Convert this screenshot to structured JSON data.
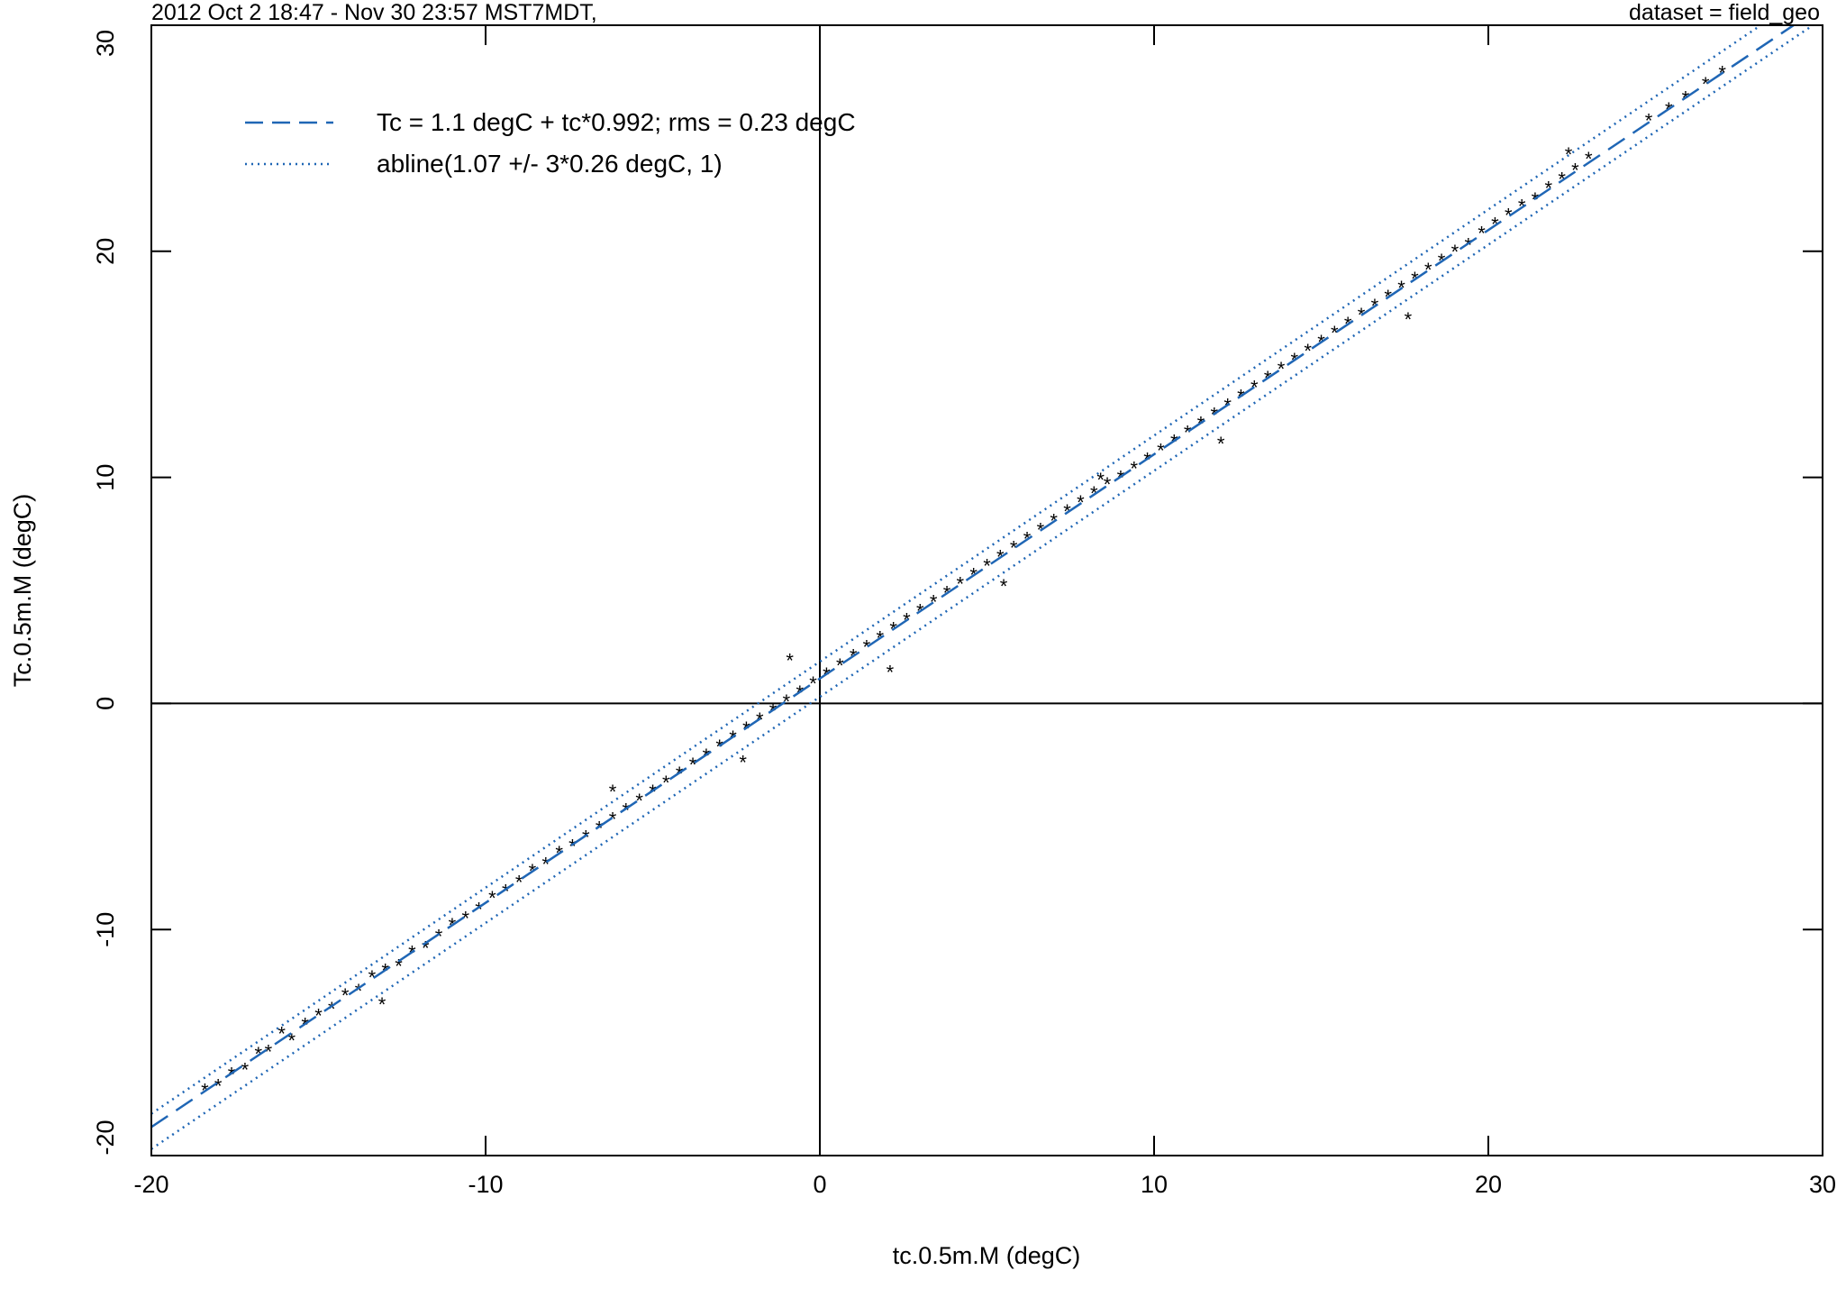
{
  "chart_data": {
    "type": "scatter",
    "header_left": "2012 Oct 2 18:47 - Nov 30 23:57  MST7MDT,",
    "header_right": "dataset = field_geo",
    "xlabel": "tc.0.5m.M (degC)",
    "ylabel": "Tc.0.5m.M (degC)",
    "xlim": [
      -20,
      30
    ],
    "ylim": [
      -20,
      30
    ],
    "xticks": [
      "-20",
      "-10",
      "0",
      "10",
      "20",
      "30"
    ],
    "yticks": [
      "-20",
      "-10",
      "0",
      "10",
      "20",
      "30"
    ],
    "grid": false,
    "reference_lines": {
      "x": 0,
      "y": 0
    },
    "legend": {
      "placement": "top-left",
      "entries": [
        {
          "label": "Tc = 1.1 degC + tc*0.992; rms = 0.23 degC",
          "style": "dashed",
          "color": "#1f66b5"
        },
        {
          "label": "abline(1.07 +/- 3*0.26 degC, 1)",
          "style": "dotted",
          "color": "#1f66b5"
        }
      ]
    },
    "fit_line": {
      "intercept": 1.1,
      "slope": 0.992,
      "color": "#1f66b5"
    },
    "bound_lines": [
      {
        "intercept": 1.85,
        "slope": 1,
        "color": "#1f66b5"
      },
      {
        "intercept": 0.29,
        "slope": 1,
        "color": "#1f66b5"
      }
    ],
    "series": [
      {
        "marker": "*",
        "color": "#000000",
        "points": [
          [
            -18.4,
            -17.1
          ],
          [
            -18.0,
            -16.9
          ],
          [
            -17.6,
            -16.4
          ],
          [
            -17.2,
            -16.2
          ],
          [
            -16.8,
            -15.5
          ],
          [
            -16.5,
            -15.4
          ],
          [
            -16.1,
            -14.6
          ],
          [
            -15.8,
            -14.9
          ],
          [
            -15.4,
            -14.2
          ],
          [
            -15.0,
            -13.8
          ],
          [
            -14.6,
            -13.5
          ],
          [
            -14.2,
            -12.9
          ],
          [
            -13.8,
            -12.7
          ],
          [
            -13.4,
            -12.1
          ],
          [
            -13.0,
            -11.8
          ],
          [
            -12.6,
            -11.6
          ],
          [
            -12.2,
            -11.0
          ],
          [
            -11.8,
            -10.8
          ],
          [
            -11.4,
            -10.3
          ],
          [
            -11.0,
            -9.8
          ],
          [
            -10.6,
            -9.5
          ],
          [
            -10.2,
            -9.1
          ],
          [
            -9.8,
            -8.6
          ],
          [
            -9.4,
            -8.3
          ],
          [
            -9.0,
            -7.9
          ],
          [
            -8.6,
            -7.4
          ],
          [
            -8.2,
            -7.1
          ],
          [
            -7.8,
            -6.6
          ],
          [
            -7.4,
            -6.3
          ],
          [
            -7.0,
            -5.9
          ],
          [
            -6.6,
            -5.5
          ],
          [
            -6.2,
            -5.1
          ],
          [
            -5.8,
            -4.7
          ],
          [
            -5.4,
            -4.3
          ],
          [
            -5.0,
            -3.9
          ],
          [
            -4.6,
            -3.5
          ],
          [
            -4.2,
            -3.1
          ],
          [
            -3.8,
            -2.7
          ],
          [
            -3.4,
            -2.3
          ],
          [
            -3.0,
            -1.9
          ],
          [
            -2.6,
            -1.5
          ],
          [
            -2.2,
            -1.1
          ],
          [
            -1.8,
            -0.7
          ],
          [
            -1.4,
            -0.3
          ],
          [
            -1.0,
            0.1
          ],
          [
            -0.6,
            0.5
          ],
          [
            -0.2,
            0.9
          ],
          [
            0.2,
            1.3
          ],
          [
            0.6,
            1.7
          ],
          [
            1.0,
            2.1
          ],
          [
            1.4,
            2.5
          ],
          [
            1.8,
            2.9
          ],
          [
            2.2,
            3.3
          ],
          [
            2.6,
            3.7
          ],
          [
            3.0,
            4.1
          ],
          [
            3.4,
            4.5
          ],
          [
            3.8,
            4.9
          ],
          [
            4.2,
            5.3
          ],
          [
            4.6,
            5.7
          ],
          [
            5.0,
            6.1
          ],
          [
            5.4,
            6.5
          ],
          [
            5.8,
            6.9
          ],
          [
            6.2,
            7.3
          ],
          [
            6.6,
            7.7
          ],
          [
            7.0,
            8.1
          ],
          [
            7.4,
            8.5
          ],
          [
            7.8,
            8.9
          ],
          [
            8.2,
            9.3
          ],
          [
            8.6,
            9.7
          ],
          [
            9.0,
            10.0
          ],
          [
            9.4,
            10.4
          ],
          [
            9.8,
            10.8
          ],
          [
            10.2,
            11.2
          ],
          [
            10.6,
            11.6
          ],
          [
            11.0,
            12.0
          ],
          [
            11.4,
            12.4
          ],
          [
            11.8,
            12.8
          ],
          [
            12.2,
            13.2
          ],
          [
            12.6,
            13.6
          ],
          [
            13.0,
            14.0
          ],
          [
            13.4,
            14.4
          ],
          [
            13.8,
            14.8
          ],
          [
            14.2,
            15.2
          ],
          [
            14.6,
            15.6
          ],
          [
            15.0,
            16.0
          ],
          [
            15.4,
            16.4
          ],
          [
            15.8,
            16.8
          ],
          [
            16.2,
            17.2
          ],
          [
            16.6,
            17.6
          ],
          [
            17.0,
            18.0
          ],
          [
            17.4,
            18.4
          ],
          [
            17.8,
            18.8
          ],
          [
            18.2,
            19.2
          ],
          [
            18.6,
            19.6
          ],
          [
            19.0,
            20.0
          ],
          [
            19.4,
            20.3
          ],
          [
            19.8,
            20.8
          ],
          [
            20.2,
            21.2
          ],
          [
            20.6,
            21.6
          ],
          [
            21.0,
            22.0
          ],
          [
            21.4,
            22.3
          ],
          [
            21.8,
            22.8
          ],
          [
            22.2,
            23.2
          ],
          [
            22.6,
            23.6
          ],
          [
            23.0,
            24.1
          ],
          [
            24.8,
            25.8
          ],
          [
            25.4,
            26.3
          ],
          [
            25.9,
            26.8
          ],
          [
            26.5,
            27.4
          ],
          [
            27.0,
            27.9
          ],
          [
            2.1,
            1.4
          ],
          [
            5.5,
            5.2
          ],
          [
            17.6,
            17.0
          ],
          [
            22.4,
            24.3
          ],
          [
            -6.2,
            -3.9
          ],
          [
            -0.9,
            1.9
          ],
          [
            -2.3,
            -2.6
          ],
          [
            12.0,
            11.5
          ],
          [
            8.4,
            9.9
          ],
          [
            -13.1,
            -13.3
          ]
        ]
      }
    ]
  }
}
